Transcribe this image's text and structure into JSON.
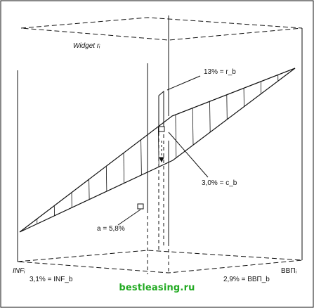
{
  "labels": {
    "widget": "Widget rᵢ",
    "r_b": "13% = r_b",
    "c_b": "3,0% = c_b",
    "a": "a = 5,8%",
    "inf_axis": "INFᵢ",
    "inf_b": "3,1% = INF_b",
    "gdp_axis": "ВВПᵢ",
    "gdp_b": "2,9% = ВВП_b"
  },
  "watermark": "bestleasing.ru",
  "colors": {
    "ink": "#111111",
    "watermark": "#22aa22",
    "background": "#ffffff"
  }
}
